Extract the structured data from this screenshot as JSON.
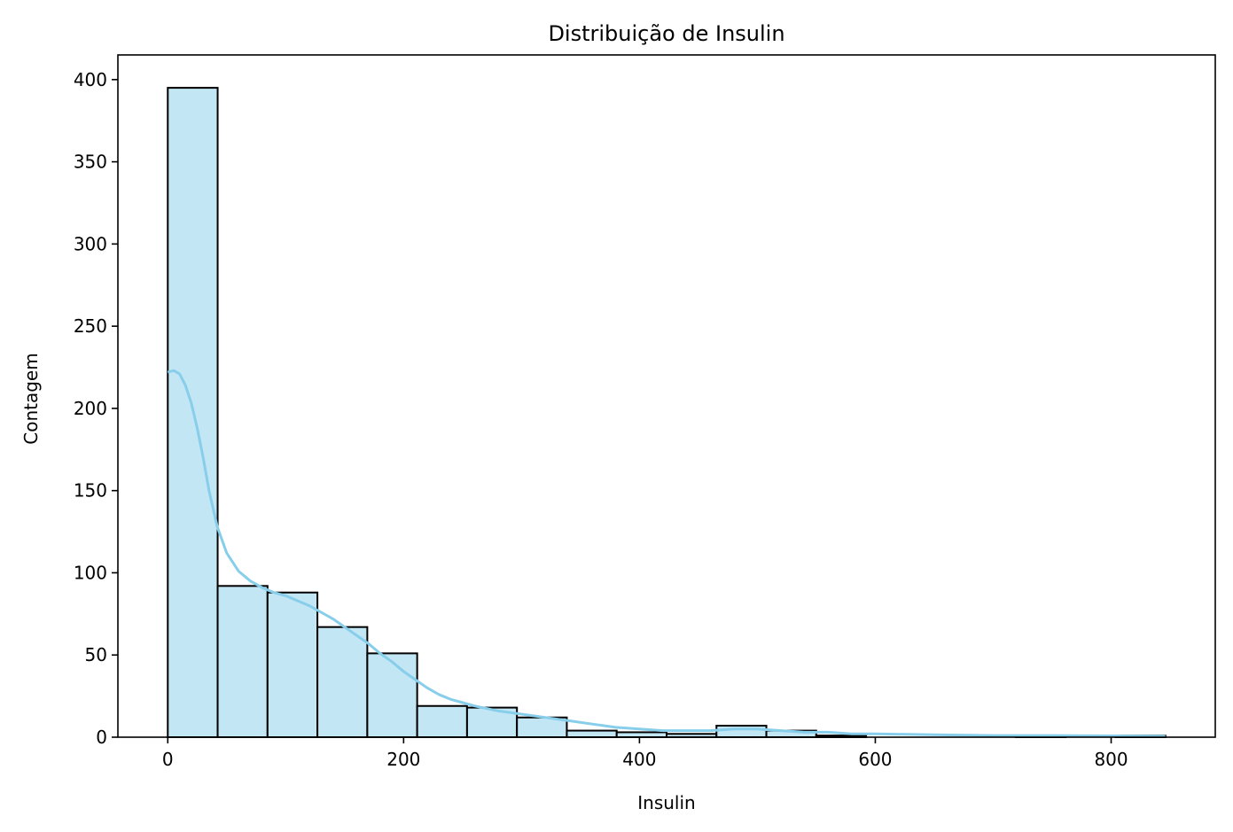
{
  "chart_data": {
    "type": "bar",
    "subtype": "histogram-with-kde",
    "title": "Distribuição de Insulin",
    "xlabel": "Insulin",
    "ylabel": "Contagem",
    "xlim": [
      -42.3,
      888.3
    ],
    "ylim": [
      0,
      415
    ],
    "x_ticks": [
      0,
      200,
      400,
      600,
      800
    ],
    "y_ticks": [
      0,
      50,
      100,
      150,
      200,
      250,
      300,
      350,
      400
    ],
    "bins": [
      {
        "x0": 0.0,
        "x1": 42.3,
        "count": 395
      },
      {
        "x0": 42.3,
        "x1": 84.6,
        "count": 92
      },
      {
        "x0": 84.6,
        "x1": 126.9,
        "count": 88
      },
      {
        "x0": 126.9,
        "x1": 169.2,
        "count": 67
      },
      {
        "x0": 169.2,
        "x1": 211.5,
        "count": 51
      },
      {
        "x0": 211.5,
        "x1": 253.8,
        "count": 19
      },
      {
        "x0": 253.8,
        "x1": 296.1,
        "count": 18
      },
      {
        "x0": 296.1,
        "x1": 338.4,
        "count": 12
      },
      {
        "x0": 338.4,
        "x1": 380.7,
        "count": 4
      },
      {
        "x0": 380.7,
        "x1": 423.0,
        "count": 3
      },
      {
        "x0": 423.0,
        "x1": 465.3,
        "count": 2
      },
      {
        "x0": 465.3,
        "x1": 507.6,
        "count": 7
      },
      {
        "x0": 507.6,
        "x1": 549.9,
        "count": 4
      },
      {
        "x0": 549.9,
        "x1": 592.2,
        "count": 1
      },
      {
        "x0": 592.2,
        "x1": 634.5,
        "count": 0
      },
      {
        "x0": 634.5,
        "x1": 676.8,
        "count": 0
      },
      {
        "x0": 676.8,
        "x1": 719.1,
        "count": 0
      },
      {
        "x0": 719.1,
        "x1": 761.4,
        "count": 1
      },
      {
        "x0": 761.4,
        "x1": 803.7,
        "count": 0
      },
      {
        "x0": 803.7,
        "x1": 846.0,
        "count": 1
      }
    ],
    "kde": {
      "x": [
        0,
        5,
        10,
        15,
        20,
        25,
        30,
        35,
        42,
        50,
        60,
        70,
        80,
        90,
        100,
        110,
        120,
        130,
        140,
        150,
        160,
        170,
        180,
        190,
        200,
        210,
        220,
        230,
        240,
        250,
        260,
        280,
        300,
        320,
        340,
        360,
        380,
        400,
        420,
        440,
        460,
        480,
        500,
        520,
        540,
        560,
        580,
        600,
        650,
        700,
        750,
        800,
        846
      ],
      "y": [
        222,
        223,
        221,
        214,
        203,
        188,
        170,
        150,
        128,
        112,
        101,
        95,
        91,
        88,
        86,
        83,
        80,
        76,
        72,
        67,
        62,
        57,
        51,
        46,
        40,
        35,
        30,
        26,
        23,
        21,
        19,
        16,
        14,
        12,
        10,
        8,
        6,
        5,
        4,
        4,
        4,
        5,
        5,
        4,
        3,
        3,
        2,
        2,
        1.5,
        1,
        1,
        0.8,
        0.6
      ]
    },
    "grid": false,
    "legend": "none",
    "colors": {
      "bar_fill": "#c3e6f4",
      "bar_edge": "#000000",
      "kde_line": "#87ceeb",
      "axes": "#000000"
    }
  }
}
